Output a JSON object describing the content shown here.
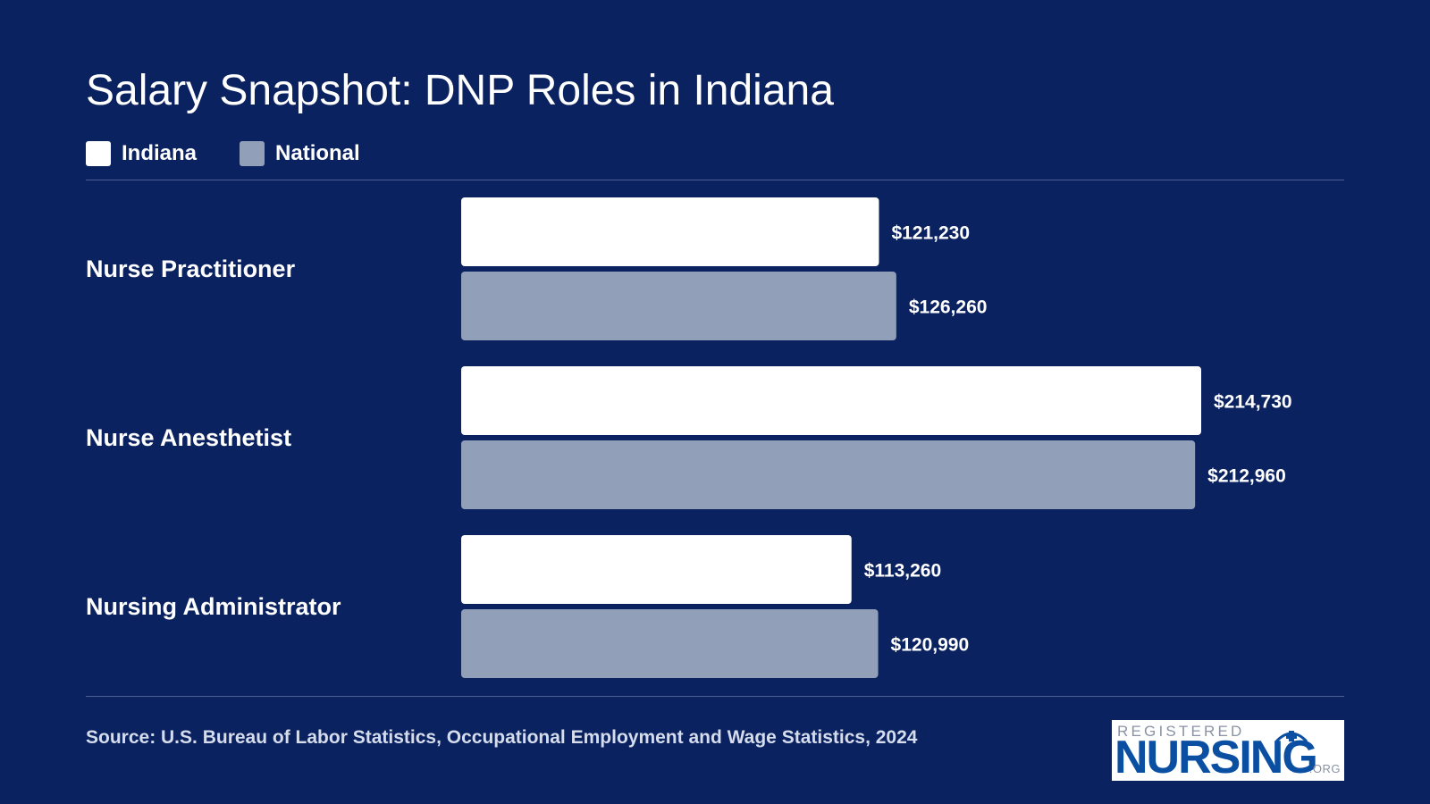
{
  "colors": {
    "background": "#0b2260",
    "indiana": "#ffffff",
    "national": "#929fb9",
    "divider": "#4a5f90",
    "logo_blue": "#0b4fa3"
  },
  "chart_data": {
    "type": "bar",
    "orientation": "horizontal",
    "title": "Salary Snapshot: DNP Roles in Indiana",
    "categories": [
      "Nurse Practitioner",
      "Nurse Anesthetist",
      "Nursing Administrator"
    ],
    "series": [
      {
        "name": "Indiana",
        "values": [
          121230,
          214730,
          113260
        ],
        "labels": [
          "$121,230",
          "$214,730",
          "$113,260"
        ]
      },
      {
        "name": "National",
        "values": [
          126260,
          212960,
          120990
        ],
        "labels": [
          "$126,260",
          "$212,960",
          "$120,990"
        ]
      }
    ],
    "xlim": [
      0,
      230000
    ],
    "grid": false,
    "legend": "top-left"
  },
  "source": "Source: U.S. Bureau of Labor Statistics, Occupational Employment and Wage Statistics, 2024",
  "logo": {
    "top": "REGISTERED",
    "main": "NURSING",
    "suffix": ".ORG",
    "icon": "nurse-cap-cross-icon"
  }
}
